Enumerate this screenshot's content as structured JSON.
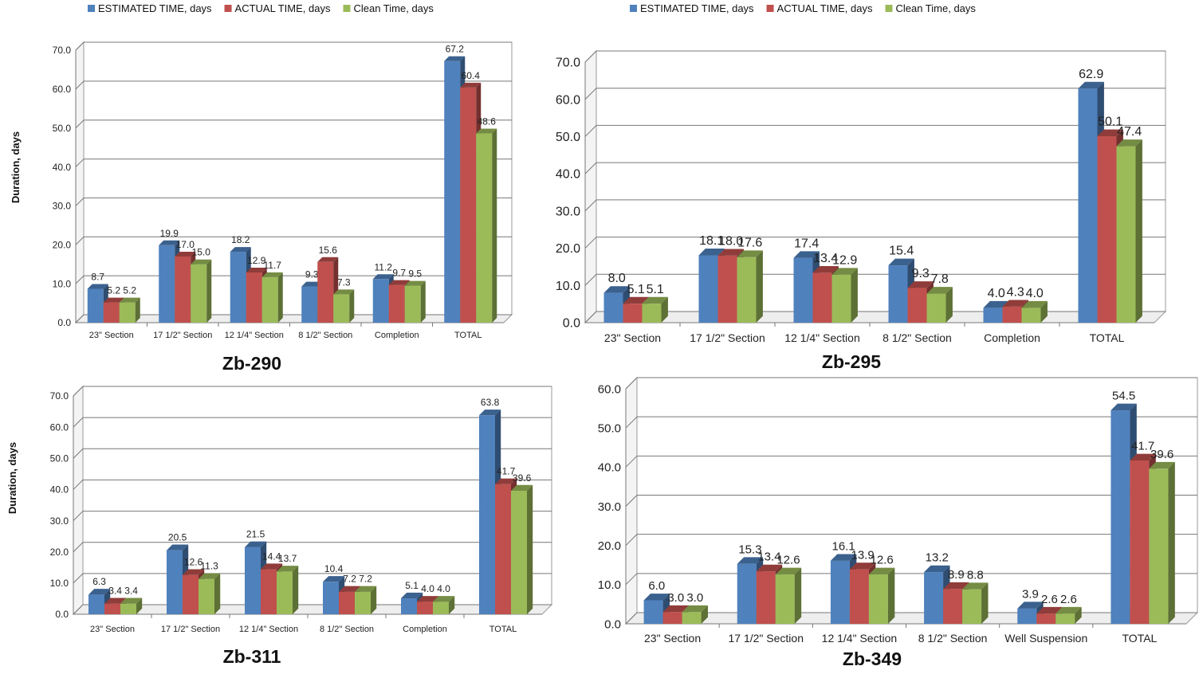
{
  "chart_data": [
    {
      "type": "bar",
      "title": "Zb-290",
      "ylabel": "Duration, days",
      "ylim": [
        0,
        70
      ],
      "yticks": [
        "0.0",
        "10.0",
        "20.0",
        "30.0",
        "40.0",
        "50.0",
        "60.0",
        "70.0"
      ],
      "categories": [
        "23\" Section",
        "17 1/2\" Section",
        "12 1/4\" Section",
        "8 1/2\" Section",
        "Completion",
        "TOTAL"
      ],
      "series": [
        {
          "name": "ESTIMATED TIME, days",
          "values": [
            8.7,
            19.9,
            18.2,
            9.3,
            11.2,
            67.2
          ]
        },
        {
          "name": "ACTUAL TIME, days",
          "values": [
            5.2,
            17.0,
            12.9,
            15.6,
            9.7,
            60.4
          ]
        },
        {
          "name": "Clean Time, days",
          "values": [
            5.2,
            15.0,
            11.7,
            7.3,
            9.5,
            48.6
          ]
        }
      ],
      "legend": "top",
      "grid": true
    },
    {
      "type": "bar",
      "title": "Zb-295",
      "ylabel": "",
      "ylim": [
        0,
        70
      ],
      "yticks": [
        "0.0",
        "10.0",
        "20.0",
        "30.0",
        "40.0",
        "50.0",
        "60.0",
        "70.0"
      ],
      "categories": [
        "23\" Section",
        "17 1/2\" Section",
        "12 1/4\" Section",
        "8 1/2\" Section",
        "Completion",
        "TOTAL"
      ],
      "series": [
        {
          "name": "ESTIMATED TIME, days",
          "values": [
            8.0,
            18.1,
            17.4,
            15.4,
            4.0,
            62.9
          ]
        },
        {
          "name": "ACTUAL TIME, days",
          "values": [
            5.1,
            18.0,
            13.4,
            9.3,
            4.3,
            50.1
          ]
        },
        {
          "name": "Clean Time, days",
          "values": [
            5.1,
            17.6,
            12.9,
            7.8,
            4.0,
            47.4
          ]
        }
      ],
      "legend": "top",
      "grid": true
    },
    {
      "type": "bar",
      "title": "Zb-311",
      "ylabel": "Duration, days",
      "ylim": [
        0,
        70
      ],
      "yticks": [
        "0.0",
        "10.0",
        "20.0",
        "30.0",
        "40.0",
        "50.0",
        "60.0",
        "70.0"
      ],
      "categories": [
        "23\" Section",
        "17 1/2\" Section",
        "12 1/4\" Section",
        "8 1/2\" Section",
        "Completion",
        "TOTAL"
      ],
      "series": [
        {
          "name": "ESTIMATED TIME, days",
          "values": [
            6.3,
            20.5,
            21.5,
            10.4,
            5.1,
            63.8
          ]
        },
        {
          "name": "ACTUAL TIME, days",
          "values": [
            3.4,
            12.6,
            14.4,
            7.2,
            4.0,
            41.7
          ]
        },
        {
          "name": "Clean Time, days",
          "values": [
            3.4,
            11.3,
            13.7,
            7.2,
            4.0,
            39.6
          ]
        }
      ],
      "grid": true
    },
    {
      "type": "bar",
      "title": "Zb-349",
      "ylabel": "",
      "ylim": [
        0,
        60
      ],
      "yticks": [
        "0.0",
        "10.0",
        "20.0",
        "30.0",
        "40.0",
        "50.0",
        "60.0"
      ],
      "categories": [
        "23\" Section",
        "17 1/2\" Section",
        "12 1/4\" Section",
        "8 1/2\" Section",
        "Well Suspension",
        "TOTAL"
      ],
      "series": [
        {
          "name": "ESTIMATED TIME, days",
          "values": [
            6.0,
            15.3,
            16.1,
            13.2,
            3.9,
            54.5
          ]
        },
        {
          "name": "ACTUAL TIME, days",
          "values": [
            3.0,
            13.4,
            13.9,
            8.9,
            2.6,
            41.7
          ]
        },
        {
          "name": "Clean Time, days",
          "values": [
            3.0,
            12.6,
            12.6,
            8.8,
            2.6,
            39.6
          ]
        }
      ],
      "grid": true
    }
  ],
  "colors": {
    "estimated": "#4F81BD",
    "actual": "#C0504D",
    "clean": "#9BBB59"
  }
}
